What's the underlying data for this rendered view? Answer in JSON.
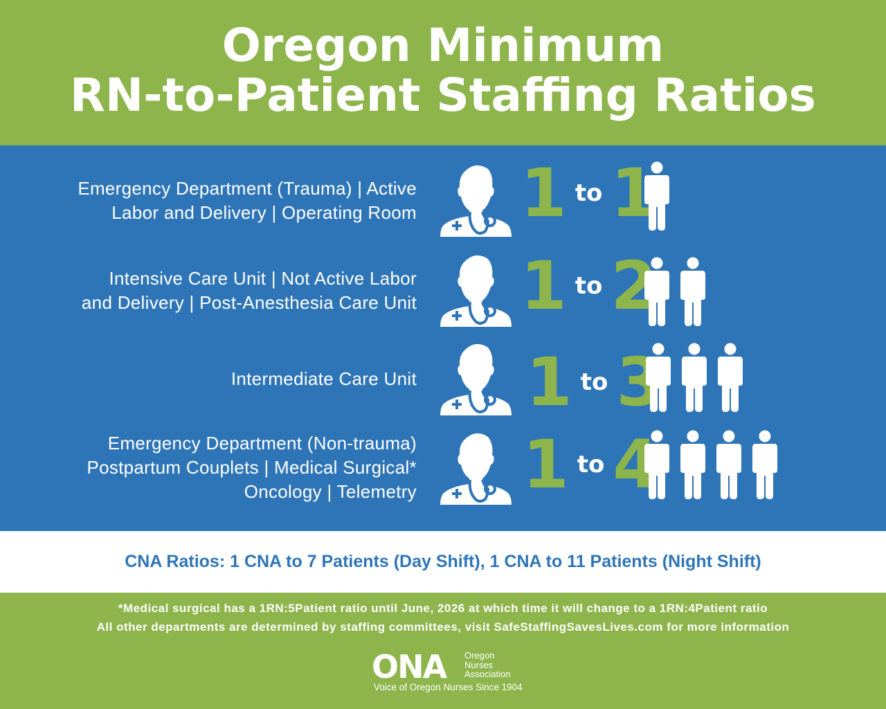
{
  "header": {
    "title_line1": "Oregon Minimum",
    "title_line2": "RN-to-Patient Staffing Ratios"
  },
  "rows": [
    {
      "lines": [
        "Emergency Department (Trauma)  |  Active",
        "Labor and Delivery  |  Operating Room"
      ],
      "rn": "1",
      "to": "to",
      "patients": "1",
      "patient_count": 1
    },
    {
      "lines": [
        "Intensive Care Unit  |  Not Active Labor",
        "and Delivery  |  Post-Anesthesia Care Unit"
      ],
      "rn": "1",
      "to": "to",
      "patients": "2",
      "patient_count": 2
    },
    {
      "lines": [
        "Intermediate Care Unit"
      ],
      "rn": "1",
      "to": "to",
      "patients": "3",
      "patient_count": 3
    },
    {
      "lines": [
        "Emergency Department (Non-trauma)",
        "Postpartum Couplets  |  Medical Surgical*",
        "Oncology  |  Telemetry"
      ],
      "rn": "1",
      "to": "to",
      "patients": "4",
      "patient_count": 4
    }
  ],
  "cna": "CNA Ratios: 1 CNA to 7 Patients (Day Shift), 1 CNA to 11 Patients (Night Shift)",
  "footer": {
    "note1": "*Medical surgical has a 1RN:5Patient ratio until June, 2026 at which time it will change to a 1RN:4Patient ratio",
    "note2": "All other departments are determined by staffing committees, visit SafeStaffingSavesLives.com for more information"
  },
  "logo": {
    "acronym": "ONA",
    "org_line1": "Oregon",
    "org_line2": "Nurses",
    "org_line3": "Association",
    "tagline": "Voice of Oregon Nurses Since 1904"
  },
  "colors": {
    "green": "#8db54b",
    "blue": "#2e75b8",
    "white": "#ffffff"
  }
}
